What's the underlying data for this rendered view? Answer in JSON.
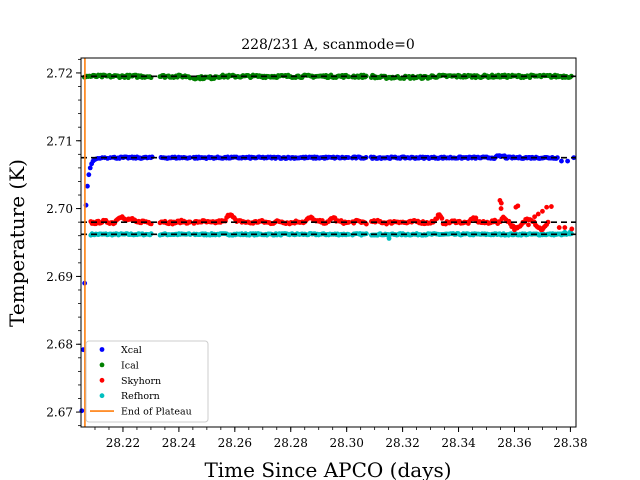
{
  "chart_data": {
    "type": "scatter",
    "title": "228/231 A, scanmode=0",
    "xlabel": "Time Since APCO (days)",
    "ylabel": "Temperature (K)",
    "xlim": [
      28.205,
      28.382
    ],
    "ylim": [
      2.6678,
      2.7222
    ],
    "xticks": [
      28.22,
      28.24,
      28.26,
      28.28,
      28.3,
      28.32,
      28.34,
      28.36,
      28.38
    ],
    "xtick_labels": [
      "28.22",
      "28.24",
      "28.26",
      "28.28",
      "28.30",
      "28.32",
      "28.34",
      "28.36",
      "28.38"
    ],
    "yticks": [
      2.67,
      2.68,
      2.69,
      2.7,
      2.71,
      2.72
    ],
    "ytick_labels": [
      "2.67",
      "2.68",
      "2.69",
      "2.70",
      "2.71",
      "2.72"
    ],
    "grid": false,
    "legend_position": "lower-left",
    "series": [
      {
        "name": "Xcal",
        "color": "#0000ff",
        "plateau": 2.7075,
        "x": [
          28.2053,
          28.2058,
          28.2063,
          28.2068,
          28.2073,
          28.2078,
          28.2083,
          28.2088,
          28.2093,
          28.2098,
          28.2103,
          28.211,
          28.2118,
          28.2126,
          28.2135,
          28.2145,
          28.2155
        ],
        "y": [
          2.6702,
          2.6792,
          2.689,
          2.7005,
          2.7033,
          2.705,
          2.706,
          2.7066,
          2.707,
          2.7072,
          2.7073,
          2.7074,
          2.7074,
          2.7075,
          2.7075,
          2.7074,
          2.7075
        ]
      },
      {
        "name": "Ical",
        "color": "#008000",
        "plateau": 2.7195
      },
      {
        "name": "Skyhorn",
        "color": "#ff0000",
        "plateau": 2.698
      },
      {
        "name": "Refhorn",
        "color": "#00bfbf",
        "plateau": 2.6962
      }
    ],
    "reference_lines": [
      {
        "type": "horizontal",
        "style": "dashed",
        "color": "#000000",
        "y": 2.7195
      },
      {
        "type": "horizontal",
        "style": "dashed",
        "color": "#000000",
        "y": 2.7075
      },
      {
        "type": "horizontal",
        "style": "dashed",
        "color": "#000000",
        "y": 2.698
      },
      {
        "type": "horizontal",
        "style": "dashed",
        "color": "#000000",
        "y": 2.6962
      },
      {
        "type": "vertical",
        "name": "End of Plateau",
        "color": "#ff7f0e",
        "x": 28.2064
      }
    ],
    "legend": [
      {
        "label": "Xcal",
        "color": "#0000ff",
        "marker": "dot"
      },
      {
        "label": "Ical",
        "color": "#008000",
        "marker": "dot"
      },
      {
        "label": "Skyhorn",
        "color": "#ff0000",
        "marker": "dot"
      },
      {
        "label": "Refhorn",
        "color": "#00bfbf",
        "marker": "dot"
      },
      {
        "label": "End of Plateau",
        "color": "#ff7f0e",
        "marker": "line"
      }
    ]
  }
}
